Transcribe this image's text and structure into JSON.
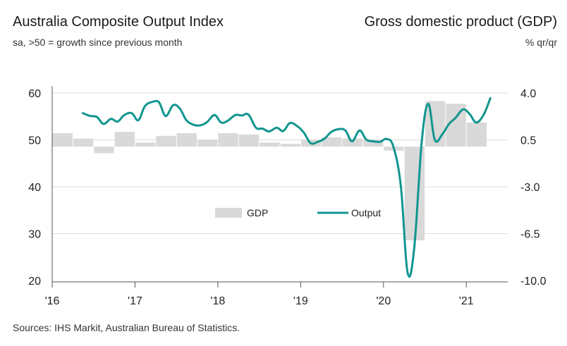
{
  "header": {
    "left_title": "Australia Composite Output Index",
    "left_subtitle": "sa, >50 = growth since previous month",
    "right_title": "Gross domestic product (GDP)",
    "right_subtitle": "% qr/qr"
  },
  "footer": {
    "source": "Sources: IHS Markit, Australian Bureau of Statistics."
  },
  "colors": {
    "output_line": "#10958f",
    "gdp_bar": "#d9d9d9",
    "grid": "#dcdcdc",
    "axis": "#555555"
  },
  "chart_data": {
    "type": "bar+line",
    "left_axis": {
      "label": "Composite Output Index",
      "ylim": [
        20,
        60
      ],
      "ticks": [
        "60",
        "50",
        "40",
        "30",
        "20"
      ],
      "tick_values": [
        60,
        50,
        40,
        30,
        20
      ]
    },
    "right_axis": {
      "label": "% qr/qr",
      "ylim": [
        -10.0,
        4.0
      ],
      "ticks": [
        "4.0",
        "0.5",
        "-3.0",
        "-6.5",
        "-10.0"
      ],
      "tick_values": [
        4.0,
        0.5,
        -3.0,
        -6.5,
        -10.0
      ]
    },
    "x_axis": {
      "range": [
        2016.0,
        2021.5
      ],
      "ticks": [
        "'16",
        "'17",
        "'18",
        "'19",
        "'20",
        "'21"
      ],
      "tick_values": [
        2016,
        2017,
        2018,
        2019,
        2020,
        2021
      ]
    },
    "legend": [
      {
        "name": "GDP",
        "kind": "bar"
      },
      {
        "name": "Output",
        "kind": "line"
      }
    ],
    "series": [
      {
        "name": "GDP",
        "type": "bar",
        "axis": "right",
        "x": [
          "2016Q1",
          "2016Q2",
          "2016Q3",
          "2016Q4",
          "2017Q1",
          "2017Q2",
          "2017Q3",
          "2017Q4",
          "2018Q1",
          "2018Q2",
          "2018Q3",
          "2018Q4",
          "2019Q1",
          "2019Q2",
          "2019Q3",
          "2019Q4",
          "2020Q1",
          "2020Q2",
          "2020Q3",
          "2020Q4",
          "2021Q1"
        ],
        "values": [
          1.0,
          0.6,
          -0.5,
          1.1,
          0.3,
          0.8,
          1.0,
          0.5,
          1.0,
          0.9,
          0.3,
          0.2,
          0.5,
          0.7,
          0.6,
          0.5,
          -0.3,
          -7.0,
          3.4,
          3.2,
          1.8
        ]
      },
      {
        "name": "Output",
        "type": "line",
        "axis": "left",
        "x": [
          2016.37,
          2016.46,
          2016.54,
          2016.62,
          2016.71,
          2016.79,
          2016.87,
          2016.96,
          2017.04,
          2017.12,
          2017.21,
          2017.29,
          2017.37,
          2017.46,
          2017.54,
          2017.62,
          2017.71,
          2017.79,
          2017.87,
          2017.96,
          2018.04,
          2018.12,
          2018.21,
          2018.29,
          2018.37,
          2018.46,
          2018.54,
          2018.62,
          2018.71,
          2018.79,
          2018.87,
          2018.96,
          2019.04,
          2019.12,
          2019.21,
          2019.29,
          2019.37,
          2019.46,
          2019.54,
          2019.62,
          2019.71,
          2019.79,
          2019.87,
          2019.96,
          2020.04,
          2020.12,
          2020.21,
          2020.29,
          2020.37,
          2020.46,
          2020.54,
          2020.62,
          2020.71,
          2020.79,
          2020.87,
          2020.96,
          2021.04,
          2021.12,
          2021.21,
          2021.29
        ],
        "values": [
          55.7,
          55.1,
          54.9,
          53.4,
          54.5,
          53.9,
          55.3,
          55.7,
          54.2,
          57.2,
          58.1,
          58.0,
          55.1,
          57.4,
          56.7,
          54.2,
          53.2,
          53.1,
          53.8,
          55.3,
          53.7,
          54.1,
          55.3,
          55.2,
          55.4,
          52.6,
          52.4,
          51.8,
          52.6,
          51.9,
          53.6,
          52.9,
          51.5,
          49.3,
          49.6,
          50.3,
          51.7,
          52.3,
          52.0,
          49.7,
          52.0,
          50.1,
          49.7,
          49.6,
          50.2,
          48.5,
          40.0,
          21.7,
          26.8,
          49.3,
          57.7,
          50.0,
          51.2,
          53.4,
          54.7,
          56.5,
          55.5,
          53.7,
          55.4,
          58.9
        ]
      }
    ]
  }
}
